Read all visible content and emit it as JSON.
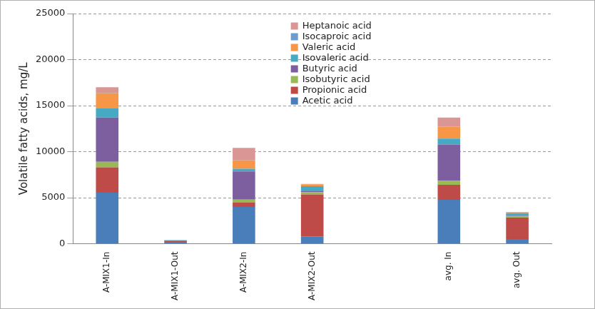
{
  "chart_data": {
    "type": "bar",
    "stacked": true,
    "y_label": "Volatile fatty acids, mg/L",
    "categories": [
      "A-MIX1-In",
      "A-MIX1-Out",
      "A-MIX2-In",
      "A-MIX2-Out",
      null,
      "avg. In",
      "avg. Out"
    ],
    "series": [
      {
        "name": "Acetic acid",
        "color": "#4a7ebb",
        "values": [
          5550,
          200,
          4000,
          800,
          null,
          4775,
          500
        ]
      },
      {
        "name": "Propionic acid",
        "color": "#be4b48",
        "values": [
          2750,
          100,
          500,
          4550,
          null,
          1625,
          2325
        ]
      },
      {
        "name": "Isobutyric acid",
        "color": "#98b954",
        "values": [
          600,
          0,
          300,
          250,
          null,
          450,
          125
        ]
      },
      {
        "name": "Butyric acid",
        "color": "#7d5fa0",
        "values": [
          4800,
          50,
          3050,
          100,
          null,
          3925,
          75
        ]
      },
      {
        "name": "Isovaleric acid",
        "color": "#46aac4",
        "values": [
          1000,
          50,
          300,
          550,
          null,
          650,
          300
        ]
      },
      {
        "name": "Valeric acid",
        "color": "#f79646",
        "values": [
          1650,
          0,
          900,
          200,
          null,
          1275,
          100
        ]
      },
      {
        "name": "Isocaproic acid",
        "color": "#6b9bd1",
        "values": [
          50,
          0,
          0,
          0,
          null,
          25,
          0
        ]
      },
      {
        "name": "Heptanoic acid",
        "color": "#d99694",
        "values": [
          600,
          0,
          1350,
          50,
          null,
          975,
          25
        ]
      }
    ],
    "ylim": [
      0,
      25000
    ],
    "yticks": [
      0,
      5000,
      10000,
      15000,
      20000,
      25000
    ],
    "grid": true,
    "legend": "top"
  }
}
